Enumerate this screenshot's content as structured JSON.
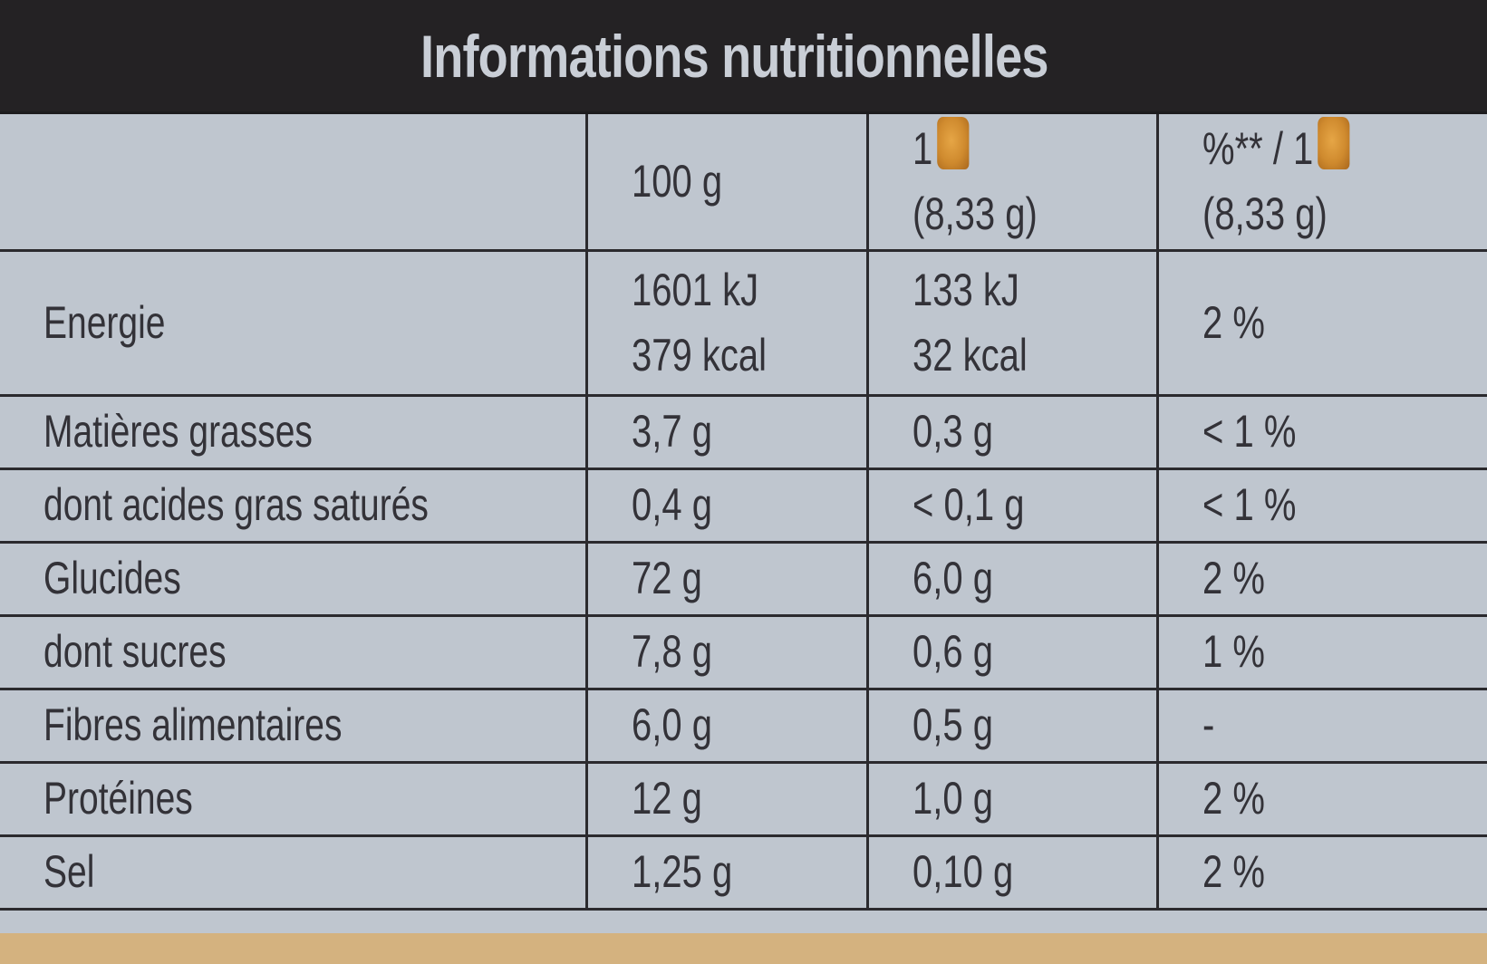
{
  "title": "Informations nutritionnelles",
  "header": {
    "col_100g": "100 g",
    "col_portion_line1": "1",
    "col_portion_line2": "(8,33 g)",
    "col_percent_line1": "%** / 1",
    "col_percent_line2": "(8,33 g)",
    "portion_icon": "rusk-icon"
  },
  "rows": [
    {
      "label": "Energie",
      "per100_line1": "1601 kJ",
      "per100_line2": "379 kcal",
      "portion_line1": "133 kJ",
      "portion_line2": "32 kcal",
      "percent": "2 %"
    },
    {
      "label": "Matières grasses",
      "per100": "3,7 g",
      "portion": "0,3 g",
      "percent": "< 1 %"
    },
    {
      "label": "dont acides gras saturés",
      "per100": "0,4 g",
      "portion": "< 0,1 g",
      "percent": "< 1 %"
    },
    {
      "label": "Glucides",
      "per100": "72 g",
      "portion": "6,0 g",
      "percent": "2 %"
    },
    {
      "label": "dont sucres",
      "per100": "7,8 g",
      "portion": "0,6 g",
      "percent": "1 %"
    },
    {
      "label": "Fibres alimentaires",
      "per100": "6,0 g",
      "portion": "0,5 g",
      "percent": "-"
    },
    {
      "label": "Protéines",
      "per100": "12 g",
      "portion": "1,0 g",
      "percent": "2 %"
    },
    {
      "label": "Sel",
      "per100": "1,25 g",
      "portion": "0,10 g",
      "percent": "2 %"
    }
  ],
  "colors": {
    "title_bar": "#242224",
    "table_bg": "#bfc6cf",
    "text": "#333238",
    "icon": "#d99838"
  }
}
